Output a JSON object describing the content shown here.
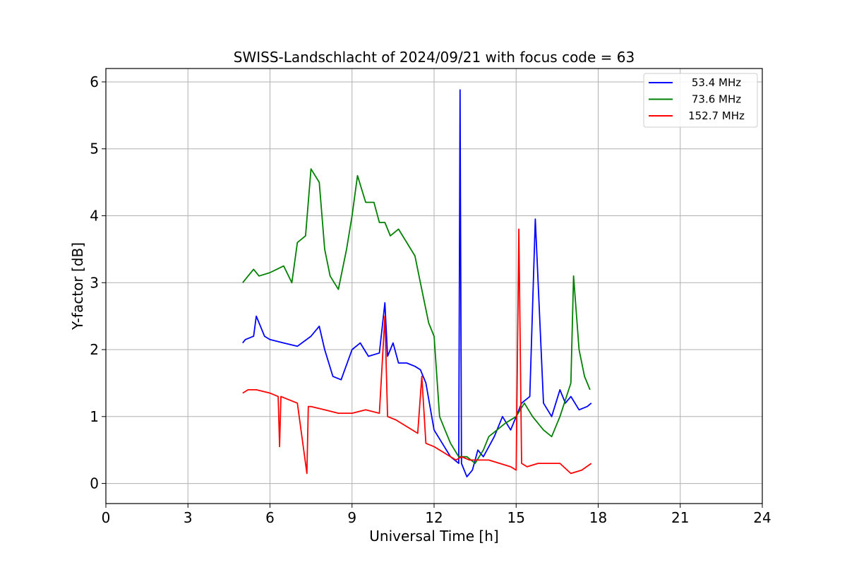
{
  "chart_data": {
    "type": "line",
    "title": "SWISS-Landschlacht of 2024/09/21 with focus code = 63",
    "xlabel": "Universal Time [h]",
    "ylabel": "Y-factor [dB]",
    "xlim": [
      0,
      24
    ],
    "ylim": [
      -0.3,
      6.2
    ],
    "xticks": [
      "0",
      "3",
      "6",
      "9",
      "12",
      "15",
      "18",
      "21",
      "24"
    ],
    "yticks": [
      "0",
      "1",
      "2",
      "3",
      "4",
      "5",
      "6"
    ],
    "grid": true,
    "legend_position": "top-right",
    "series": [
      {
        "name": "53.4 MHz",
        "color": "#0000ff",
        "x": [
          5.0,
          5.1,
          5.4,
          5.5,
          5.8,
          6.0,
          6.5,
          7.0,
          7.5,
          7.8,
          8.0,
          8.3,
          8.6,
          9.0,
          9.3,
          9.6,
          10.0,
          10.2,
          10.3,
          10.5,
          10.7,
          11.0,
          11.3,
          11.5,
          11.7,
          12.0,
          12.3,
          12.6,
          12.9,
          12.95,
          13.0,
          13.2,
          13.4,
          13.6,
          13.8,
          14.2,
          14.5,
          14.8,
          15.0,
          15.2,
          15.5,
          15.7,
          16.0,
          16.3,
          16.6,
          16.8,
          17.0,
          17.3,
          17.6,
          17.75
        ],
        "y": [
          2.1,
          2.15,
          2.2,
          2.5,
          2.2,
          2.15,
          2.1,
          2.05,
          2.2,
          2.35,
          2.0,
          1.6,
          1.55,
          2.0,
          2.1,
          1.9,
          1.95,
          2.7,
          1.9,
          2.1,
          1.8,
          1.8,
          1.75,
          1.7,
          1.5,
          0.8,
          0.6,
          0.4,
          0.3,
          5.88,
          0.3,
          0.1,
          0.2,
          0.5,
          0.4,
          0.7,
          1.0,
          0.8,
          1.0,
          1.2,
          1.3,
          3.95,
          1.2,
          1.0,
          1.4,
          1.2,
          1.3,
          1.1,
          1.15,
          1.2
        ]
      },
      {
        "name": "73.6 MHz",
        "color": "#008000",
        "x": [
          5.0,
          5.2,
          5.4,
          5.6,
          6.0,
          6.5,
          6.8,
          7.0,
          7.3,
          7.5,
          7.8,
          8.0,
          8.2,
          8.5,
          8.8,
          9.0,
          9.2,
          9.5,
          9.8,
          10.0,
          10.2,
          10.4,
          10.7,
          11.0,
          11.3,
          11.5,
          11.8,
          12.0,
          12.2,
          12.4,
          12.6,
          12.9,
          13.2,
          13.5,
          13.8,
          14.0,
          14.3,
          14.6,
          15.0,
          15.3,
          15.6,
          16.0,
          16.3,
          16.6,
          17.0,
          17.1,
          17.3,
          17.5,
          17.7
        ],
        "y": [
          3.0,
          3.1,
          3.2,
          3.1,
          3.15,
          3.25,
          3.0,
          3.6,
          3.7,
          4.7,
          4.5,
          3.5,
          3.1,
          2.9,
          3.5,
          4.0,
          4.6,
          4.2,
          4.2,
          3.9,
          3.9,
          3.7,
          3.8,
          3.6,
          3.4,
          3.0,
          2.4,
          2.2,
          1.0,
          0.8,
          0.6,
          0.4,
          0.4,
          0.3,
          0.5,
          0.7,
          0.8,
          0.9,
          1.0,
          1.2,
          1.0,
          0.8,
          0.7,
          1.0,
          1.5,
          3.1,
          2.0,
          1.6,
          1.4
        ]
      },
      {
        "name": "152.7 MHz",
        "color": "#ff0000",
        "x": [
          5.0,
          5.2,
          5.5,
          6.0,
          6.3,
          6.35,
          6.4,
          7.0,
          7.35,
          7.4,
          7.5,
          8.0,
          8.5,
          9.0,
          9.5,
          10.0,
          10.2,
          10.3,
          10.6,
          11.0,
          11.4,
          11.55,
          11.7,
          12.0,
          12.4,
          12.8,
          13.0,
          13.3,
          13.6,
          14.0,
          14.4,
          14.8,
          15.0,
          15.1,
          15.2,
          15.4,
          15.8,
          16.2,
          16.6,
          17.0,
          17.4,
          17.75
        ],
        "y": [
          1.35,
          1.4,
          1.4,
          1.35,
          1.3,
          0.55,
          1.3,
          1.2,
          0.15,
          1.15,
          1.15,
          1.1,
          1.05,
          1.05,
          1.1,
          1.05,
          2.5,
          1.0,
          0.95,
          0.85,
          0.75,
          1.6,
          0.6,
          0.55,
          0.45,
          0.35,
          0.4,
          0.35,
          0.35,
          0.35,
          0.3,
          0.25,
          0.2,
          3.8,
          0.3,
          0.25,
          0.3,
          0.3,
          0.3,
          0.15,
          0.2,
          0.3
        ]
      }
    ]
  }
}
